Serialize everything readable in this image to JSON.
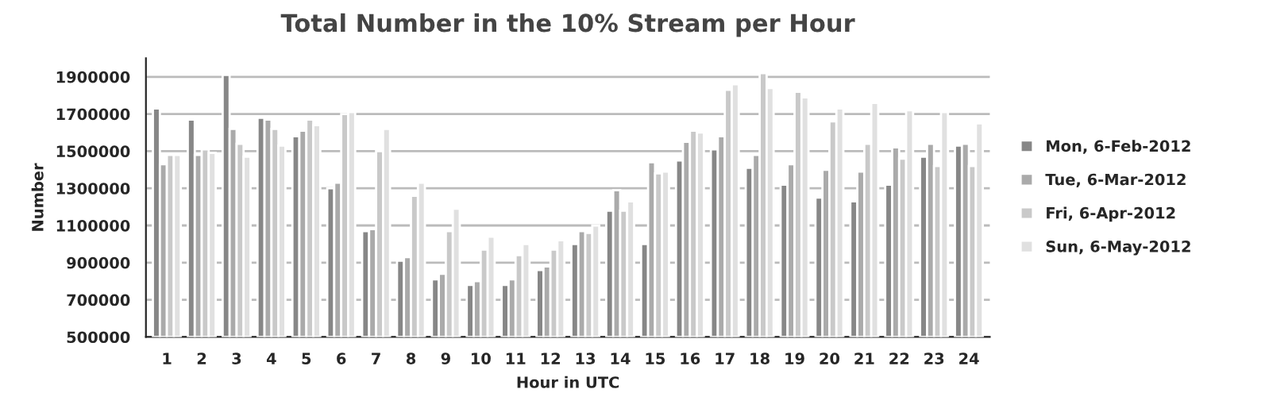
{
  "chart_data": {
    "type": "bar",
    "title": "Total Number in the 10% Stream per Hour",
    "xlabel": "Hour in UTC",
    "ylabel": "Number",
    "categories": [
      "1",
      "2",
      "3",
      "4",
      "5",
      "6",
      "7",
      "8",
      "9",
      "10",
      "11",
      "12",
      "13",
      "14",
      "15",
      "16",
      "17",
      "18",
      "19",
      "20",
      "21",
      "22",
      "23",
      "24"
    ],
    "series": [
      {
        "name": "Mon, 6-Feb-2012",
        "color": "#878787",
        "values": [
          1730000,
          1670000,
          1910000,
          1680000,
          1580000,
          1300000,
          1070000,
          910000,
          810000,
          780000,
          780000,
          860000,
          1000000,
          1180000,
          1000000,
          1450000,
          1510000,
          1410000,
          1320000,
          1250000,
          1230000,
          1320000,
          1470000,
          1530000
        ]
      },
      {
        "name": "Tue, 6-Mar-2012",
        "color": "#aaaaaa",
        "values": [
          1430000,
          1480000,
          1620000,
          1670000,
          1610000,
          1330000,
          1080000,
          930000,
          840000,
          800000,
          810000,
          880000,
          1070000,
          1290000,
          1440000,
          1550000,
          1580000,
          1480000,
          1430000,
          1400000,
          1390000,
          1520000,
          1540000,
          1540000
        ]
      },
      {
        "name": "Fri, 6-Apr-2012",
        "color": "#c9c9c9",
        "values": [
          1480000,
          1510000,
          1540000,
          1620000,
          1670000,
          1700000,
          1500000,
          1260000,
          1070000,
          970000,
          940000,
          970000,
          1060000,
          1180000,
          1380000,
          1610000,
          1830000,
          1920000,
          1820000,
          1660000,
          1540000,
          1460000,
          1420000,
          1420000
        ]
      },
      {
        "name": "Sun, 6-May-2012",
        "color": "#e0e0e0",
        "values": [
          1480000,
          1490000,
          1470000,
          1530000,
          1640000,
          1710000,
          1620000,
          1330000,
          1190000,
          1040000,
          1000000,
          1020000,
          1100000,
          1230000,
          1390000,
          1600000,
          1860000,
          1840000,
          1790000,
          1730000,
          1760000,
          1720000,
          1710000,
          1650000
        ]
      }
    ],
    "ylim": [
      500000,
      2000000
    ],
    "yticks": [
      500000,
      700000,
      900000,
      1100000,
      1300000,
      1500000,
      1700000,
      1900000
    ],
    "grid": "y",
    "legend": "right"
  }
}
